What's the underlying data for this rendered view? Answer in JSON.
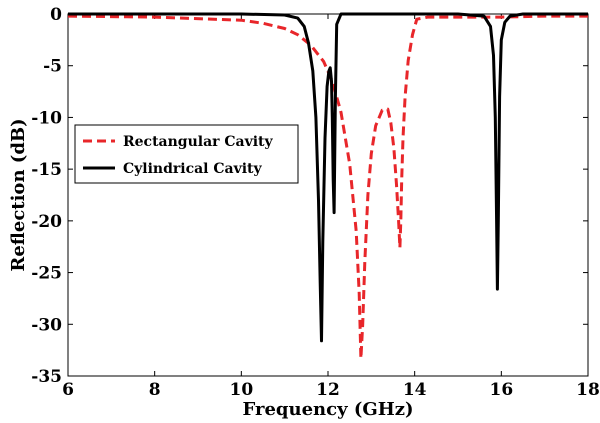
{
  "chart_data": {
    "type": "line",
    "xlabel": "Frequency (GHz)",
    "ylabel": "Reflection (dB)",
    "xlim": [
      6,
      18
    ],
    "ylim": [
      -35,
      0
    ],
    "xticks": [
      6,
      8,
      10,
      12,
      14,
      16,
      18
    ],
    "yticks": [
      0,
      -5,
      -10,
      -15,
      -20,
      -25,
      -30,
      -35
    ],
    "grid": false,
    "legend": "center-left",
    "series": [
      {
        "name": "Rectangular Cavity",
        "color": "#e8262a",
        "dash": "dashed",
        "x": [
          6,
          8,
          10,
          10.5,
          11,
          11.3,
          11.6,
          11.9,
          12.1,
          12.3,
          12.5,
          12.65,
          12.72,
          12.76,
          12.8,
          12.85,
          12.92,
          13.0,
          13.1,
          13.25,
          13.38,
          13.45,
          13.52,
          13.58,
          13.63,
          13.66,
          13.68,
          13.7,
          13.73,
          13.78,
          13.85,
          13.95,
          14.05,
          14.3,
          15,
          16,
          17,
          18
        ],
        "y": [
          -0.2,
          -0.3,
          -0.6,
          -0.9,
          -1.4,
          -2.0,
          -3.0,
          -4.6,
          -6.5,
          -9.5,
          -14.5,
          -21.0,
          -27.0,
          -33.3,
          -30.0,
          -24.0,
          -17.5,
          -13.5,
          -10.8,
          -9.3,
          -9.2,
          -10.5,
          -13.0,
          -16.5,
          -20.0,
          -22.6,
          -20.0,
          -16.0,
          -12.0,
          -8.0,
          -4.5,
          -2.0,
          -0.5,
          -0.3,
          -0.3,
          -0.3,
          -0.2,
          -0.2
        ]
      },
      {
        "name": "Cylindrical Cavity",
        "color": "#000000",
        "dash": "solid",
        "x": [
          6,
          8,
          10,
          11,
          11.3,
          11.45,
          11.55,
          11.65,
          11.72,
          11.78,
          11.82,
          11.85,
          11.88,
          11.93,
          11.98,
          12.02,
          12.05,
          12.08,
          12.1,
          12.12,
          12.14,
          12.17,
          12.2,
          12.3,
          13,
          14,
          15,
          15.6,
          15.75,
          15.82,
          15.86,
          15.89,
          15.91,
          15.93,
          15.96,
          16.0,
          16.08,
          16.2,
          16.5,
          17,
          18
        ],
        "y": [
          0,
          0,
          0,
          -0.1,
          -0.4,
          -1.2,
          -2.8,
          -5.5,
          -10.0,
          -18.0,
          -26.0,
          -31.6,
          -22.0,
          -12.0,
          -7.0,
          -5.5,
          -5.2,
          -6.5,
          -10.0,
          -16.0,
          -19.2,
          -8.0,
          -1.0,
          0,
          0,
          0,
          0,
          -0.2,
          -1.2,
          -4.0,
          -10.0,
          -20.0,
          -26.6,
          -20.0,
          -8.0,
          -2.5,
          -0.8,
          -0.2,
          0,
          0,
          0
        ]
      }
    ]
  }
}
